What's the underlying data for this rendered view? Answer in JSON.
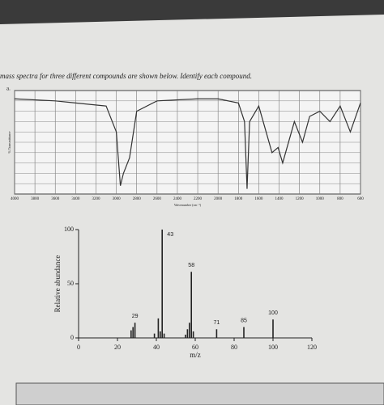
{
  "header": {
    "text": "mass spectra for three different compounds are shown below. Identify each compound.",
    "part": "a."
  },
  "chart_data": [
    {
      "type": "line",
      "xlabel": "Wavenumber (cm⁻¹)",
      "ylabel": "% Transmittance",
      "x": [
        4000,
        3600,
        3400,
        3100,
        3000,
        2960,
        2930,
        2870,
        2800,
        2600,
        2200,
        2000,
        1800,
        1740,
        1715,
        1690,
        1600,
        1470,
        1410,
        1365,
        1250,
        1170,
        1100,
        1000,
        900,
        800,
        700,
        600
      ],
      "values": [
        92,
        90,
        88,
        85,
        60,
        8,
        20,
        35,
        80,
        90,
        92,
        92,
        88,
        70,
        5,
        70,
        85,
        40,
        45,
        30,
        70,
        50,
        75,
        80,
        70,
        85,
        60,
        88
      ],
      "color": "#333333",
      "xlim": [
        4000,
        600
      ],
      "ylim": [
        0,
        100
      ],
      "xticks": [
        4000,
        3800,
        3600,
        3400,
        3200,
        3000,
        2800,
        2600,
        2400,
        2200,
        2000,
        1800,
        1600,
        1400,
        1200,
        1000,
        800,
        600
      ],
      "grid": true
    },
    {
      "type": "bar",
      "xlabel": "m/z",
      "ylabel": "Relative abundance",
      "x": [
        27,
        28,
        29,
        39,
        41,
        42,
        43,
        44,
        55,
        56,
        57,
        58,
        59,
        71,
        85,
        100
      ],
      "values": [
        7,
        10,
        14,
        4,
        18,
        6,
        100,
        4,
        3,
        8,
        14,
        61,
        6,
        8,
        10,
        17
      ],
      "labeled_peaks": [
        29,
        43,
        58,
        71,
        85,
        100
      ],
      "color": "#222222",
      "xlim": [
        0,
        120
      ],
      "ylim": [
        0,
        100
      ],
      "xticks": [
        0,
        20,
        40,
        60,
        80,
        100,
        120
      ],
      "yticks": [
        0,
        50,
        100
      ],
      "grid": false
    }
  ]
}
